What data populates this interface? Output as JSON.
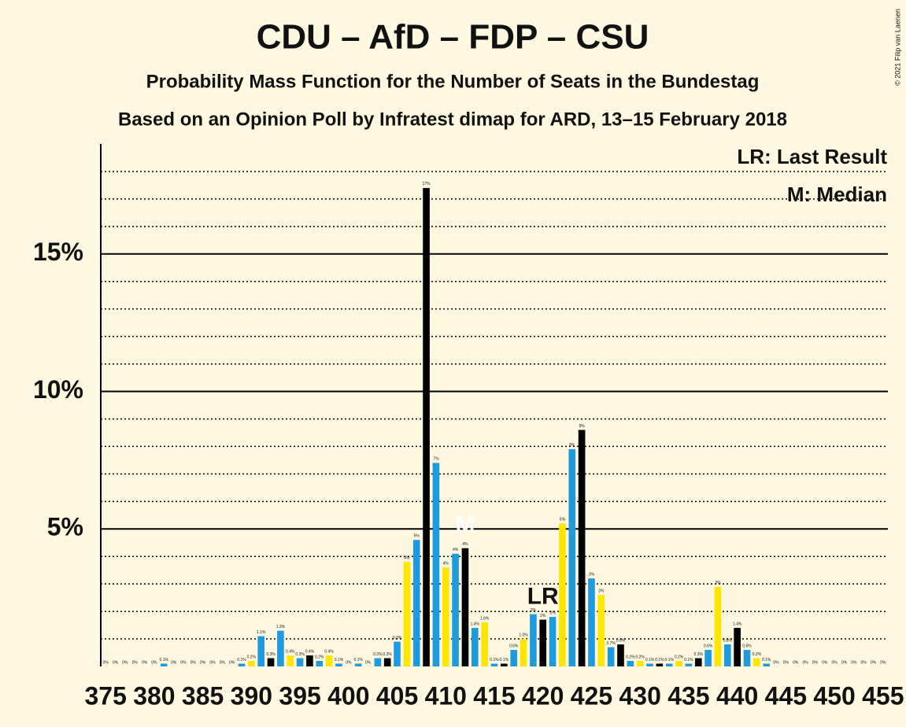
{
  "chart_data": {
    "type": "bar",
    "title": "CDU – AfD – FDP – CSU",
    "subtitle": "Probability Mass Function for the Number of Seats in the Bundestag",
    "subtitle2": "Based on an Opinion Poll by Infratest dimap for ARD, 13–15 February 2018",
    "copyright": "© 2021 Filip van Laenen",
    "legend": [
      "LR: Last Result",
      "M: Median"
    ],
    "annotations": [
      {
        "text": "LR",
        "x": 420
      },
      {
        "text": "M",
        "x": 412
      }
    ],
    "x": [
      375,
      376,
      377,
      378,
      379,
      380,
      381,
      382,
      383,
      384,
      385,
      386,
      387,
      388,
      389,
      390,
      391,
      392,
      393,
      394,
      395,
      396,
      397,
      398,
      399,
      400,
      401,
      402,
      403,
      404,
      405,
      406,
      407,
      408,
      409,
      410,
      411,
      412,
      413,
      414,
      415,
      416,
      417,
      418,
      419,
      420,
      421,
      422,
      423,
      424,
      425,
      426,
      427,
      428,
      429,
      430,
      431,
      432,
      433,
      434,
      435,
      436,
      437,
      438,
      439,
      440,
      441,
      442,
      443,
      444,
      445,
      446,
      447,
      448,
      449,
      450,
      451,
      452,
      453,
      454,
      455
    ],
    "values": [
      0,
      0,
      0,
      0,
      0,
      0,
      0.1,
      0,
      0,
      0,
      0,
      0,
      0,
      0,
      0.1,
      0.2,
      1.1,
      0.3,
      1.3,
      0.4,
      0.3,
      0.4,
      0.2,
      0.4,
      0.1,
      0,
      0.1,
      0,
      0.3,
      0.3,
      0.9,
      3.8,
      4.6,
      17.4,
      7.4,
      3.6,
      4.1,
      4.3,
      1.4,
      1.6,
      0.1,
      0.1,
      0.6,
      1.0,
      1.9,
      1.7,
      1.8,
      5.2,
      7.9,
      8.6,
      3.2,
      2.6,
      0.7,
      0.8,
      0.2,
      0.2,
      0.1,
      0.1,
      0.1,
      0.2,
      0.1,
      0.3,
      0.6,
      2.9,
      0.8,
      1.4,
      0.6,
      0.3,
      0.1,
      0,
      0,
      0,
      0,
      0,
      0,
      0,
      0,
      0,
      0,
      0,
      0
    ],
    "value_labels": [
      "0%",
      "0%",
      "0%",
      "0%",
      "0%",
      "0%",
      "0.1%",
      "0%",
      "0%",
      "0%",
      "0%",
      "0%",
      "0%",
      "0%",
      "0.1%",
      "0.2%",
      "1.1%",
      "0.3%",
      "1.3%",
      "0.4%",
      "0.3%",
      "0.4%",
      "0.2%",
      "0.4%",
      "0.1%",
      "0%",
      "0.1%",
      "0%",
      "0.3%",
      "0.3%",
      "0.9%",
      "4%",
      "5%",
      "17%",
      "7%",
      "4%",
      "4%",
      "4%",
      "1.4%",
      "1.6%",
      "0.1%",
      "0.1%",
      "0.6%",
      "1.0%",
      "2%",
      "2%",
      "2%",
      "5%",
      "8%",
      "9%",
      "3%",
      "3%",
      "0.7%",
      "0.8%",
      "0.2%",
      "0.2%",
      "0.1%",
      "0.1%",
      "0.1%",
      "0.2%",
      "0.1%",
      "0.3%",
      "0.6%",
      "3%",
      "0.8%",
      "1.4%",
      "0.6%",
      "0.3%",
      "0.1%",
      "0%",
      "0%",
      "0%",
      "0%",
      "0%",
      "0%",
      "0%",
      "0%",
      "0%",
      "0%",
      "0%",
      "0%"
    ],
    "colors": [
      "#1e9bdc",
      "#000000",
      "#1e9bdc",
      "#ffe600"
    ],
    "xlim": [
      374.5,
      455.5
    ],
    "xticks": [
      375,
      380,
      385,
      390,
      395,
      400,
      405,
      410,
      415,
      420,
      425,
      430,
      435,
      440,
      445,
      450,
      455
    ],
    "ylim": [
      0,
      19
    ],
    "yticks": [
      {
        "value": 5,
        "label": "5%"
      },
      {
        "value": 10,
        "label": "10%"
      },
      {
        "value": 15,
        "label": "15%"
      }
    ],
    "minor_yticks": [
      1,
      2,
      3,
      4,
      6,
      7,
      8,
      9,
      11,
      12,
      13,
      14,
      16,
      17,
      18
    ],
    "grid": true
  }
}
